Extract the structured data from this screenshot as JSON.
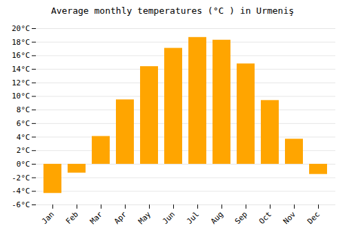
{
  "chart_data": {
    "type": "bar",
    "title": "Average monthly temperatures (°C ) in Urmeniş",
    "categories": [
      "Jan",
      "Feb",
      "Mar",
      "Apr",
      "May",
      "Jun",
      "Jul",
      "Aug",
      "Sep",
      "Oct",
      "Nov",
      "Dec"
    ],
    "values": [
      -4.3,
      -1.3,
      4.1,
      9.5,
      14.4,
      17.1,
      18.7,
      18.3,
      14.8,
      9.4,
      3.7,
      -1.5
    ],
    "color": "#FFA500",
    "ylim": [
      -6,
      20
    ],
    "yticks": [
      {
        "value": -6,
        "label": "-6°C"
      },
      {
        "value": -4,
        "label": "-4°C"
      },
      {
        "value": -2,
        "label": "-2°C"
      },
      {
        "value": 0,
        "label": "0°C"
      },
      {
        "value": 2,
        "label": "2°C"
      },
      {
        "value": 4,
        "label": "4°C"
      },
      {
        "value": 6,
        "label": "6°C"
      },
      {
        "value": 8,
        "label": "8°C"
      },
      {
        "value": 10,
        "label": "10°C"
      },
      {
        "value": 12,
        "label": "12°C"
      },
      {
        "value": 14,
        "label": "14°C"
      },
      {
        "value": 16,
        "label": "16°C"
      },
      {
        "value": 18,
        "label": "18°C"
      },
      {
        "value": 20,
        "label": "20°C"
      }
    ],
    "grid": true
  }
}
